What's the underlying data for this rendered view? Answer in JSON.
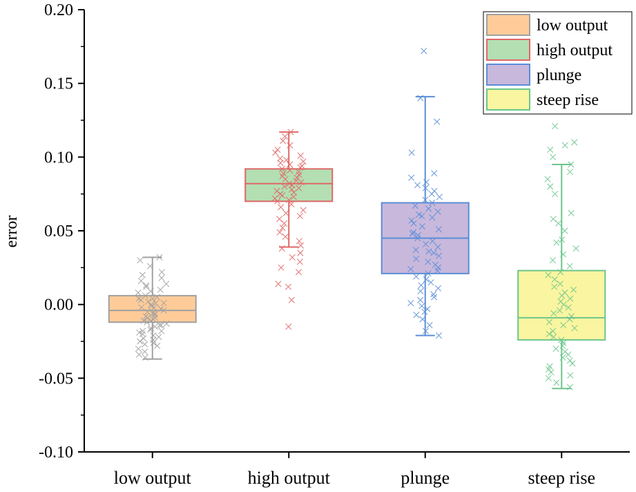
{
  "chart_data": {
    "type": "box",
    "title": "",
    "xlabel": "",
    "ylabel": "error",
    "ylim": [
      -0.1,
      0.2
    ],
    "yticks": [
      -0.1,
      -0.05,
      0.0,
      0.05,
      0.1,
      0.15,
      0.2
    ],
    "ytick_labels": [
      "-0.10",
      "-0.05",
      "0.00",
      "0.05",
      "0.10",
      "0.15",
      "0.20"
    ],
    "categories": [
      "low output",
      "high output",
      "plunge",
      "steep rise"
    ],
    "legend": {
      "position": "top-right",
      "entries": [
        "low output",
        "high output",
        "plunge",
        "steep rise"
      ]
    },
    "series": [
      {
        "name": "low output",
        "box_fill": "#FFCC99",
        "line_color": "#A0A0A0",
        "whisker_low": -0.037,
        "q1": -0.012,
        "median": -0.004,
        "q3": 0.006,
        "whisker_high": 0.032,
        "points": [
          0.032,
          0.03,
          0.026,
          0.022,
          0.02,
          0.018,
          0.016,
          0.014,
          0.012,
          0.01,
          0.008,
          0.006,
          0.005,
          0.004,
          0.003,
          0.002,
          0.001,
          0.0,
          -0.001,
          -0.002,
          -0.003,
          -0.004,
          -0.005,
          -0.006,
          -0.007,
          -0.008,
          -0.009,
          -0.01,
          -0.011,
          -0.012,
          -0.013,
          -0.014,
          -0.015,
          -0.016,
          -0.017,
          -0.018,
          -0.019,
          -0.02,
          -0.021,
          -0.022,
          -0.023,
          -0.024,
          -0.025,
          -0.026,
          -0.027,
          -0.028,
          -0.03,
          -0.032,
          -0.034,
          -0.036,
          -0.002,
          -0.006,
          0.001,
          -0.009,
          0.004,
          -0.011,
          0.009,
          -0.014,
          0.013,
          -0.018
        ]
      },
      {
        "name": "high output",
        "box_fill": "#B3DFB3",
        "line_color": "#E06666",
        "whisker_low": 0.039,
        "q1": 0.07,
        "median": 0.082,
        "q3": 0.092,
        "whisker_high": 0.117,
        "points": [
          0.117,
          0.114,
          0.111,
          0.108,
          0.105,
          0.103,
          0.101,
          0.099,
          0.098,
          0.097,
          0.096,
          0.095,
          0.094,
          0.093,
          0.092,
          0.091,
          0.09,
          0.089,
          0.088,
          0.087,
          0.086,
          0.085,
          0.084,
          0.083,
          0.082,
          0.081,
          0.08,
          0.079,
          0.078,
          0.077,
          0.076,
          0.075,
          0.074,
          0.073,
          0.072,
          0.071,
          0.07,
          0.068,
          0.066,
          0.064,
          0.062,
          0.06,
          0.058,
          0.055,
          0.052,
          0.049,
          0.046,
          0.043,
          0.04,
          0.038,
          0.035,
          0.032,
          0.029,
          0.025,
          0.022,
          0.014,
          0.012,
          0.003,
          -0.015
        ]
      },
      {
        "name": "plunge",
        "box_fill": "#C8B8DC",
        "line_color": "#5B8DD6",
        "whisker_low": -0.021,
        "q1": 0.021,
        "median": 0.045,
        "q3": 0.069,
        "whisker_high": 0.141,
        "points": [
          0.172,
          0.14,
          0.124,
          0.103,
          0.089,
          0.086,
          0.083,
          0.081,
          0.079,
          0.077,
          0.075,
          0.073,
          0.071,
          0.069,
          0.067,
          0.065,
          0.063,
          0.061,
          0.059,
          0.057,
          0.055,
          0.053,
          0.051,
          0.049,
          0.047,
          0.045,
          0.043,
          0.041,
          0.039,
          0.037,
          0.035,
          0.033,
          0.031,
          0.029,
          0.027,
          0.025,
          0.023,
          0.021,
          0.019,
          0.017,
          0.015,
          0.013,
          0.011,
          0.009,
          0.007,
          0.005,
          0.003,
          0.001,
          -0.001,
          -0.003,
          -0.005,
          -0.007,
          -0.01,
          -0.014,
          -0.018,
          -0.021,
          0.06,
          0.048,
          0.036,
          0.024
        ]
      },
      {
        "name": "steep rise",
        "box_fill": "#FAF5A0",
        "line_color": "#6CC58C",
        "whisker_low": -0.057,
        "q1": -0.024,
        "median": -0.009,
        "q3": 0.023,
        "whisker_high": 0.095,
        "points": [
          0.121,
          0.11,
          0.108,
          0.105,
          0.1,
          0.095,
          0.09,
          0.085,
          0.08,
          0.075,
          0.062,
          0.058,
          0.055,
          0.05,
          0.044,
          0.042,
          0.038,
          0.034,
          0.03,
          0.026,
          0.022,
          0.02,
          0.017,
          0.014,
          0.012,
          0.01,
          0.008,
          0.006,
          0.004,
          0.002,
          0.0,
          -0.002,
          -0.004,
          -0.006,
          -0.008,
          -0.01,
          -0.012,
          -0.014,
          -0.016,
          -0.018,
          -0.02,
          -0.022,
          -0.024,
          -0.026,
          -0.028,
          -0.03,
          -0.032,
          -0.034,
          -0.036,
          -0.038,
          -0.04,
          -0.042,
          -0.044,
          -0.046,
          -0.048,
          -0.05,
          -0.053,
          -0.056
        ]
      }
    ]
  }
}
